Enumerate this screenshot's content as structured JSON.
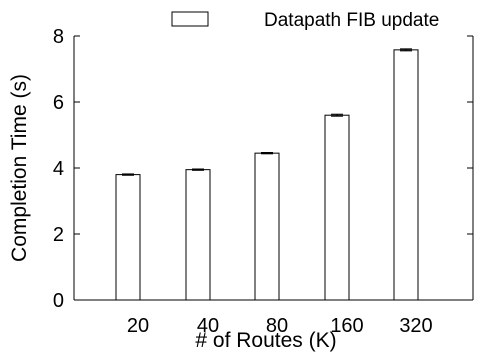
{
  "chart_data": {
    "type": "bar",
    "categories": [
      "20",
      "40",
      "80",
      "160",
      "320"
    ],
    "series": [
      {
        "name": "Datapath FIB update",
        "values": [
          3.8,
          3.95,
          4.45,
          5.6,
          7.58
        ],
        "error": [
          0.02,
          0.02,
          0.02,
          0.03,
          0.03
        ]
      }
    ],
    "xlabel": "# of Routes (K)",
    "ylabel": "Completion Time (s)",
    "ylim": [
      0,
      8
    ],
    "yticks": [
      0,
      2,
      4,
      6,
      8
    ],
    "legend_position": "top-right",
    "grid": false,
    "bar_fill": "#ffffff",
    "bar_stroke": "#000000"
  }
}
